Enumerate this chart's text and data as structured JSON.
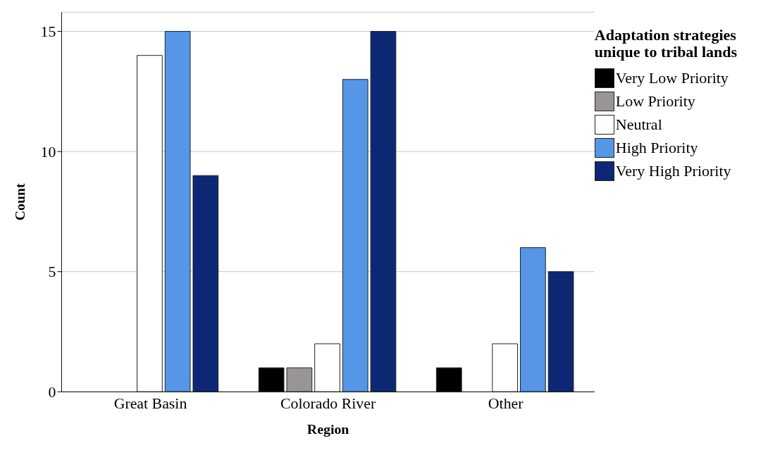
{
  "chart_data": {
    "type": "bar",
    "xlabel": "Region",
    "ylabel": "Count",
    "legend_title": "Adaptation strategies unique to tribal lands",
    "categories": [
      "Great Basin",
      "Colorado River",
      "Other"
    ],
    "series": [
      {
        "name": "Very Low Priority",
        "color": "#000000",
        "values": [
          0,
          1,
          1
        ]
      },
      {
        "name": "Low Priority",
        "color": "#999595",
        "values": [
          0,
          1,
          0
        ]
      },
      {
        "name": "Neutral",
        "color": "#ffffff",
        "values": [
          14,
          2,
          2
        ]
      },
      {
        "name": "High Priority",
        "color": "#5596e6",
        "values": [
          15,
          13,
          6
        ]
      },
      {
        "name": "Very High Priority",
        "color": "#0c2773",
        "values": [
          9,
          15,
          5
        ]
      }
    ],
    "ylim": [
      0,
      15.8
    ],
    "yticks": [
      0,
      5,
      10,
      15
    ],
    "grid": "y",
    "legend": "right"
  }
}
